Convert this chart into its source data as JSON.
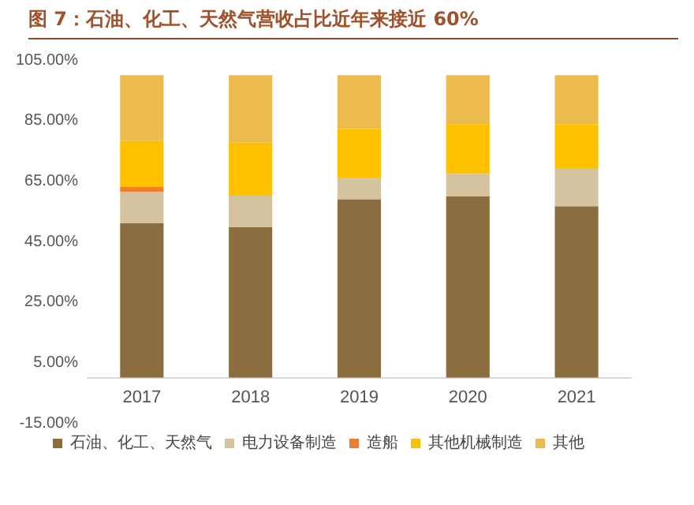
{
  "chart_data": {
    "type": "bar",
    "stacked": true,
    "title": "图 7：石油、化工、天然气营收占比近年来接近 60%",
    "categories": [
      "2017",
      "2018",
      "2019",
      "2020",
      "2021"
    ],
    "series": [
      {
        "name": "石油、化工、天然气",
        "color": "#8c6d40",
        "values": [
          51,
          49.7,
          58.9,
          59.9,
          56.6
        ]
      },
      {
        "name": "电力设备制造",
        "color": "#d4c39e",
        "values": [
          10.3,
          10.4,
          7.2,
          7.4,
          12.4
        ]
      },
      {
        "name": "造船",
        "color": "#ed7d31",
        "values": [
          1.7,
          0,
          0,
          0,
          0
        ]
      },
      {
        "name": "其他机械制造",
        "color": "#ffc000",
        "values": [
          15.2,
          17.6,
          16.1,
          16.4,
          14.7
        ]
      },
      {
        "name": "其他",
        "color": "#ebbb50",
        "values": [
          21.8,
          22.3,
          17.8,
          16.3,
          16.3
        ]
      }
    ],
    "ylim": [
      -15,
      105
    ],
    "yticks": [
      {
        "value": -15,
        "label": "-15.00%"
      },
      {
        "value": 5,
        "label": "5.00%"
      },
      {
        "value": 25,
        "label": "25.00%"
      },
      {
        "value": 45,
        "label": "45.00%"
      },
      {
        "value": 65,
        "label": "65.00%"
      },
      {
        "value": 85,
        "label": "85.00%"
      },
      {
        "value": 105,
        "label": "105.00%"
      }
    ],
    "grid": false,
    "legend": "bottom"
  }
}
